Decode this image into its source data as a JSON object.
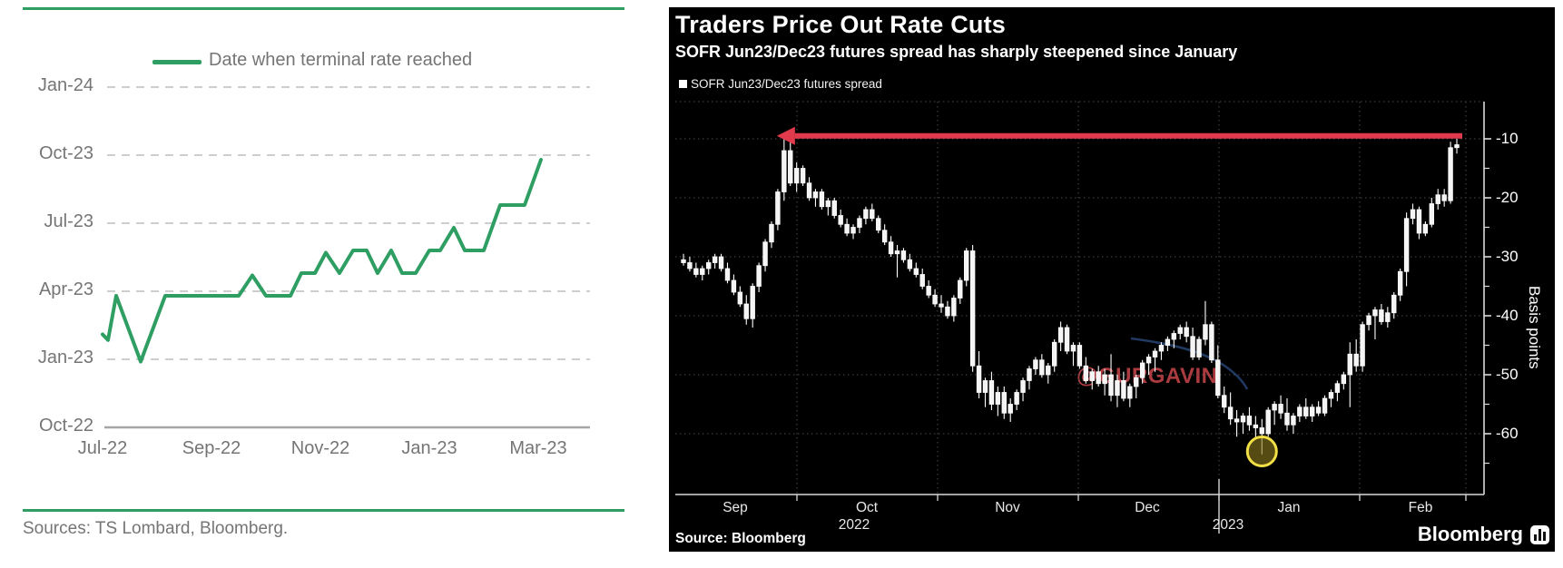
{
  "chart_data": [
    {
      "type": "line",
      "panel": "left",
      "legend": "Date when terminal rate reached",
      "source": "Sources: TS Lombard, Bloomberg.",
      "line_color": "#2f9e63",
      "text_color": "#757575",
      "grid": "horizontal dashed gridlines, no y-axis line, solid baseline at Oct-22",
      "x_tick_labels": [
        "Jul-22",
        "Sep-22",
        "Nov-22",
        "Jan-23",
        "Mar-23"
      ],
      "y_tick_labels": [
        "Jan-24",
        "Oct-23",
        "Jul-23",
        "Apr-23",
        "Jan-23",
        "Oct-22"
      ],
      "x_unit_note": "survey date, months after Jul-2022 (0 = Jul-22, 8 = Mar-23)",
      "y_unit_note": "expected terminal-rate date, months after Oct-2022 (0 = Oct-22, 3 = Jan-23, 15 = Jan-24)",
      "x_range": [
        0,
        8.4
      ],
      "y_range": [
        0,
        16
      ],
      "points": [
        [
          0,
          4.1
        ],
        [
          0.1,
          3.85
        ],
        [
          0.25,
          5.8
        ],
        [
          0.7,
          2.9
        ],
        [
          1.15,
          5.8
        ],
        [
          2.5,
          5.8
        ],
        [
          2.75,
          6.7
        ],
        [
          3.0,
          5.8
        ],
        [
          3.45,
          5.8
        ],
        [
          3.65,
          6.8
        ],
        [
          3.9,
          6.8
        ],
        [
          4.1,
          7.7
        ],
        [
          4.35,
          6.8
        ],
        [
          4.6,
          7.8
        ],
        [
          4.85,
          7.8
        ],
        [
          5.05,
          6.8
        ],
        [
          5.3,
          7.8
        ],
        [
          5.5,
          6.8
        ],
        [
          5.75,
          6.8
        ],
        [
          6.0,
          7.8
        ],
        [
          6.2,
          7.8
        ],
        [
          6.45,
          8.8
        ],
        [
          6.65,
          7.8
        ],
        [
          7.0,
          7.8
        ],
        [
          7.3,
          9.8
        ],
        [
          7.75,
          9.8
        ],
        [
          8.05,
          11.8
        ]
      ]
    },
    {
      "type": "candlestick",
      "panel": "right",
      "title": "Traders Price Out Rate Cuts",
      "subtitle": "SOFR Jun23/Dec23 futures spread has sharply steepened since January",
      "legend": "SOFR Jun23/Dec23 futures spread",
      "ylabel": "Basis points",
      "y_ticks": [
        -10,
        -20,
        -30,
        -40,
        -50,
        -60
      ],
      "ylim": [
        -66,
        -4
      ],
      "x_month_labels": [
        "Sep",
        "Oct",
        "Nov",
        "Dec",
        "Jan",
        "Feb"
      ],
      "x_year_labels": [
        "2022",
        "2023"
      ],
      "candle_color": "#f5f5f5",
      "grid": "dotted dark gridlines, axes white, ticks outside",
      "source": "Source: Bloomberg",
      "brand": "Bloomberg",
      "watermark": "@GURGAVIN",
      "annotations": {
        "red_arrow": {
          "value_bp": -9.5,
          "from_candle_index": 123,
          "to_candle_index": 16,
          "color": "#e13a4d",
          "note": "horizontal arrow pointing left from the latest candles back to the September peak level"
        },
        "yellow_circle": {
          "candle_index": 92,
          "value_bp": -63,
          "ring_color": "#f2df45",
          "note": "circles the early-January low wick near -63.5bp"
        },
        "blue_curve_note": "faint dark-blue curved stroke over late-Dec/early-Jan candles"
      },
      "candles_ohlc": [
        [
          -30.5,
          -29.5,
          -31.5,
          -31
        ],
        [
          -31,
          -30,
          -32.5,
          -32
        ],
        [
          -32,
          -31,
          -33.5,
          -33
        ],
        [
          -33,
          -31.5,
          -34,
          -32
        ],
        [
          -32,
          -30.5,
          -33,
          -31
        ],
        [
          -31,
          -29.5,
          -32,
          -30
        ],
        [
          -30,
          -29.5,
          -32.5,
          -32
        ],
        [
          -32,
          -31,
          -34.5,
          -34
        ],
        [
          -34,
          -33,
          -36.5,
          -36
        ],
        [
          -36,
          -35,
          -38.5,
          -38
        ],
        [
          -38,
          -36.5,
          -41.5,
          -40.5
        ],
        [
          -40.5,
          -34.5,
          -42,
          -35
        ],
        [
          -35,
          -31,
          -36,
          -31.5
        ],
        [
          -31.5,
          -27,
          -32.5,
          -27.5
        ],
        [
          -27.5,
          -24,
          -28.5,
          -24.5
        ],
        [
          -24.5,
          -18.5,
          -25.5,
          -19
        ],
        [
          -19,
          -9.5,
          -20.5,
          -12
        ],
        [
          -12,
          -10.5,
          -18,
          -17.5
        ],
        [
          -17.5,
          -14,
          -19,
          -15
        ],
        [
          -15,
          -14.5,
          -18,
          -17.5
        ],
        [
          -17.5,
          -16.5,
          -20.5,
          -20
        ],
        [
          -20,
          -18.5,
          -21.5,
          -19
        ],
        [
          -19,
          -18.5,
          -22,
          -21.5
        ],
        [
          -21.5,
          -20,
          -23,
          -20.5
        ],
        [
          -20.5,
          -20,
          -23.5,
          -23
        ],
        [
          -23,
          -22,
          -25,
          -24.5
        ],
        [
          -24.5,
          -23.5,
          -26.5,
          -26
        ],
        [
          -26,
          -24.5,
          -27,
          -25
        ],
        [
          -25,
          -23,
          -26,
          -23.5
        ],
        [
          -23.5,
          -21.5,
          -24.5,
          -22
        ],
        [
          -22,
          -21,
          -24,
          -23.5
        ],
        [
          -23.5,
          -23,
          -26,
          -25.5
        ],
        [
          -25.5,
          -24.5,
          -28,
          -27.5
        ],
        [
          -27.5,
          -26.5,
          -30,
          -29.5
        ],
        [
          -29.5,
          -28,
          -33.5,
          -29
        ],
        [
          -29,
          -28.5,
          -31,
          -30.5
        ],
        [
          -30.5,
          -29.5,
          -32.5,
          -32
        ],
        [
          -32,
          -31,
          -33.5,
          -33
        ],
        [
          -33,
          -32,
          -35.5,
          -35
        ],
        [
          -35,
          -34,
          -37,
          -36.5
        ],
        [
          -36.5,
          -35.5,
          -38.5,
          -38
        ],
        [
          -38,
          -36.5,
          -39.5,
          -38.5
        ],
        [
          -38.5,
          -37.5,
          -40.5,
          -40
        ],
        [
          -40,
          -36.5,
          -41,
          -37
        ],
        [
          -37,
          -33.5,
          -38,
          -34
        ],
        [
          -34,
          -28.5,
          -35,
          -29
        ],
        [
          -29,
          -28,
          -49.5,
          -48.5
        ],
        [
          -48.5,
          -46,
          -54,
          -53
        ],
        [
          -53,
          -50.5,
          -55.5,
          -51
        ],
        [
          -51,
          -49.5,
          -56,
          -55
        ],
        [
          -55,
          -52,
          -57,
          -53
        ],
        [
          -53,
          -52,
          -57.5,
          -56.5
        ],
        [
          -56.5,
          -54,
          -58,
          -55
        ],
        [
          -55,
          -52.5,
          -56,
          -53
        ],
        [
          -53,
          -50.5,
          -54.5,
          -51
        ],
        [
          -51,
          -48.5,
          -52.5,
          -49
        ],
        [
          -49,
          -47,
          -50,
          -47.5
        ],
        [
          -47.5,
          -46.5,
          -50.5,
          -50
        ],
        [
          -50,
          -48,
          -51.5,
          -48.5
        ],
        [
          -48.5,
          -44,
          -49.5,
          -44.5
        ],
        [
          -44.5,
          -41,
          -46,
          -42
        ],
        [
          -42,
          -41.5,
          -46.5,
          -46
        ],
        [
          -46,
          -44.5,
          -48.5,
          -45
        ],
        [
          -45,
          -44.5,
          -49,
          -48.5
        ],
        [
          -48.5,
          -47,
          -51.5,
          -51
        ],
        [
          -51,
          -49,
          -52.5,
          -49.5
        ],
        [
          -49.5,
          -48.5,
          -52,
          -51.5
        ],
        [
          -51.5,
          -49,
          -53.5,
          -50
        ],
        [
          -50,
          -46.5,
          -54.5,
          -53.5
        ],
        [
          -53.5,
          -50,
          -55.5,
          -51
        ],
        [
          -51,
          -49.5,
          -54.5,
          -54
        ],
        [
          -54,
          -51.5,
          -55.5,
          -52
        ],
        [
          -52,
          -50,
          -54,
          -50.5
        ],
        [
          -50.5,
          -47.5,
          -51.5,
          -48
        ],
        [
          -48,
          -46.5,
          -50,
          -47
        ],
        [
          -47,
          -45.5,
          -49.5,
          -46
        ],
        [
          -46,
          -44.5,
          -47.5,
          -45
        ],
        [
          -45,
          -43.5,
          -46,
          -44
        ],
        [
          -44,
          -42.5,
          -45.5,
          -43
        ],
        [
          -43,
          -41.5,
          -44,
          -42
        ],
        [
          -42,
          -41,
          -44.5,
          -43.5
        ],
        [
          -43.5,
          -42,
          -47.5,
          -47
        ],
        [
          -47,
          -43.5,
          -47.5,
          -44
        ],
        [
          -44,
          -37.5,
          -45,
          -41.5
        ],
        [
          -41.5,
          -41,
          -48,
          -47.5
        ],
        [
          -47.5,
          -45,
          -54,
          -53.5
        ],
        [
          -53.5,
          -52,
          -56.5,
          -55.5
        ],
        [
          -55.5,
          -53,
          -58.5,
          -57.5
        ],
        [
          -57.5,
          -56,
          -60.5,
          -58
        ],
        [
          -58,
          -56.5,
          -60,
          -57
        ],
        [
          -57,
          -55.5,
          -59.5,
          -58.5
        ],
        [
          -58.5,
          -57,
          -61,
          -59
        ],
        [
          -59,
          -57.5,
          -63.5,
          -60
        ],
        [
          -60,
          -55.5,
          -60.5,
          -56
        ],
        [
          -56,
          -54.5,
          -58.5,
          -55
        ],
        [
          -55,
          -53.5,
          -57.5,
          -56.5
        ],
        [
          -56.5,
          -54,
          -59.5,
          -58.5
        ],
        [
          -58.5,
          -56.5,
          -60,
          -57
        ],
        [
          -57,
          -55,
          -58,
          -55.5
        ],
        [
          -55.5,
          -54,
          -57.5,
          -57
        ],
        [
          -57,
          -55,
          -58,
          -55.5
        ],
        [
          -55.5,
          -54.5,
          -57,
          -56.5
        ],
        [
          -56.5,
          -53.5,
          -57,
          -54
        ],
        [
          -54,
          -52.5,
          -55.5,
          -53
        ],
        [
          -53,
          -51,
          -54.5,
          -51.5
        ],
        [
          -51.5,
          -49.5,
          -52.5,
          -50
        ],
        [
          -50,
          -44.5,
          -55.5,
          -46.5
        ],
        [
          -46.5,
          -44,
          -49.5,
          -48.5
        ],
        [
          -48.5,
          -41,
          -49.5,
          -41.5
        ],
        [
          -41.5,
          -39.5,
          -42.5,
          -40
        ],
        [
          -40,
          -38.5,
          -44,
          -39
        ],
        [
          -39,
          -38,
          -41.5,
          -41
        ],
        [
          -41,
          -38.5,
          -42,
          -39.5
        ],
        [
          -39.5,
          -36,
          -40.5,
          -36.5
        ],
        [
          -36.5,
          -32,
          -37.5,
          -32.5
        ],
        [
          -32.5,
          -22.5,
          -35,
          -23.5
        ],
        [
          -23.5,
          -21,
          -24.5,
          -22
        ],
        [
          -22,
          -21.5,
          -27,
          -26
        ],
        [
          -26,
          -24,
          -26.5,
          -24.5
        ],
        [
          -24.5,
          -20,
          -25,
          -21
        ],
        [
          -21,
          -18.5,
          -22,
          -19.5
        ],
        [
          -19.5,
          -18.5,
          -21.5,
          -20.5
        ],
        [
          -20.5,
          -10.5,
          -21,
          -11.5
        ],
        [
          -11.5,
          -10,
          -12.5,
          -11
        ]
      ]
    }
  ]
}
